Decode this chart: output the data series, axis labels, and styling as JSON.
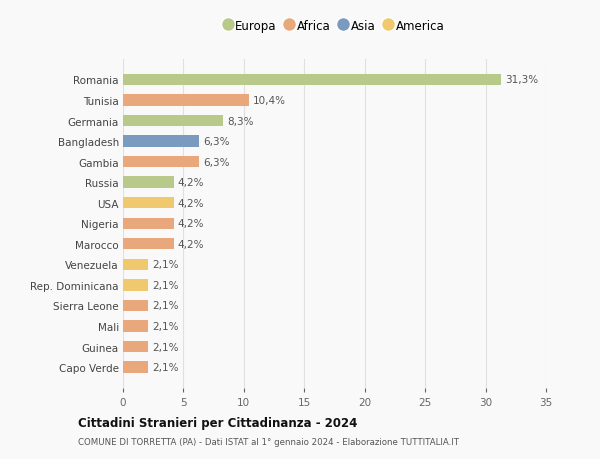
{
  "categories": [
    "Capo Verde",
    "Guinea",
    "Mali",
    "Sierra Leone",
    "Rep. Dominicana",
    "Venezuela",
    "Marocco",
    "Nigeria",
    "USA",
    "Russia",
    "Gambia",
    "Bangladesh",
    "Germania",
    "Tunisia",
    "Romania"
  ],
  "values": [
    2.1,
    2.1,
    2.1,
    2.1,
    2.1,
    2.1,
    4.2,
    4.2,
    4.2,
    4.2,
    6.3,
    6.3,
    8.3,
    10.4,
    31.3
  ],
  "labels": [
    "2,1%",
    "2,1%",
    "2,1%",
    "2,1%",
    "2,1%",
    "2,1%",
    "4,2%",
    "4,2%",
    "4,2%",
    "4,2%",
    "6,3%",
    "6,3%",
    "8,3%",
    "10,4%",
    "31,3%"
  ],
  "colors": [
    "#e8a87c",
    "#e8a87c",
    "#e8a87c",
    "#e8a87c",
    "#f0c96e",
    "#f0c96e",
    "#e8a87c",
    "#e8a87c",
    "#f0c96e",
    "#b8c98a",
    "#e8a87c",
    "#7a9abf",
    "#b8c98a",
    "#e8a87c",
    "#b8c98a"
  ],
  "legend_labels": [
    "Europa",
    "Africa",
    "Asia",
    "America"
  ],
  "legend_colors": [
    "#b8c98a",
    "#e8a87c",
    "#7a9abf",
    "#f0c96e"
  ],
  "title": "Cittadini Stranieri per Cittadinanza - 2024",
  "subtitle": "COMUNE DI TORRETTA (PA) - Dati ISTAT al 1° gennaio 2024 - Elaborazione TUTTITALIA.IT",
  "xlim": [
    0,
    35
  ],
  "xticks": [
    0,
    5,
    10,
    15,
    20,
    25,
    30,
    35
  ],
  "background_color": "#f9f9f9",
  "grid_color": "#e0e0e0",
  "bar_height": 0.55
}
